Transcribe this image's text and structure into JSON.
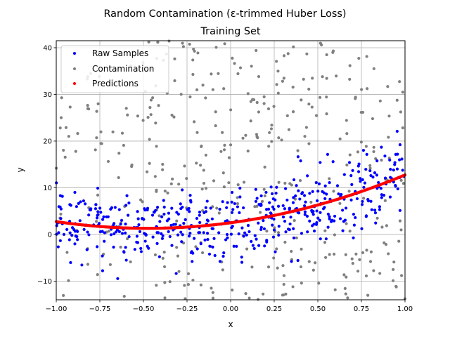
{
  "chart_data": {
    "type": "scatter",
    "suptitle": "Random Contamination (ε-trimmed Huber Loss)",
    "title": "Training Set",
    "xlabel": "x",
    "ylabel": "y",
    "xlim": [
      -1.0,
      1.0
    ],
    "ylim": [
      -14.0,
      41.5
    ],
    "xticks": [
      -1.0,
      -0.75,
      -0.5,
      -0.25,
      0.0,
      0.25,
      0.5,
      0.75,
      1.0
    ],
    "xtick_labels": [
      "−1.00",
      "−0.75",
      "−0.50",
      "−0.25",
      "0.00",
      "0.25",
      "0.50",
      "0.75",
      "1.00"
    ],
    "yticks": [
      -10,
      0,
      10,
      20,
      30,
      40
    ],
    "ytick_labels": [
      "−10",
      "0",
      "10",
      "20",
      "30",
      "40"
    ],
    "grid": true,
    "legend_position": "top-left",
    "series": [
      {
        "name": "Raw Samples",
        "color": "#0000ff",
        "count": 500,
        "model": "y = 5.25x^2 + 5x + 2.5 + noise",
        "noise_std": 3.8
      },
      {
        "name": "Contamination",
        "color": "#808080",
        "count": 400,
        "distribution": "uniform x in [-1,1], y in [-14,41.5]"
      },
      {
        "name": "Predictions",
        "color": "#ff0000",
        "count": 500,
        "model": "y = 5.25x^2 + 5x + 2.5"
      }
    ]
  }
}
